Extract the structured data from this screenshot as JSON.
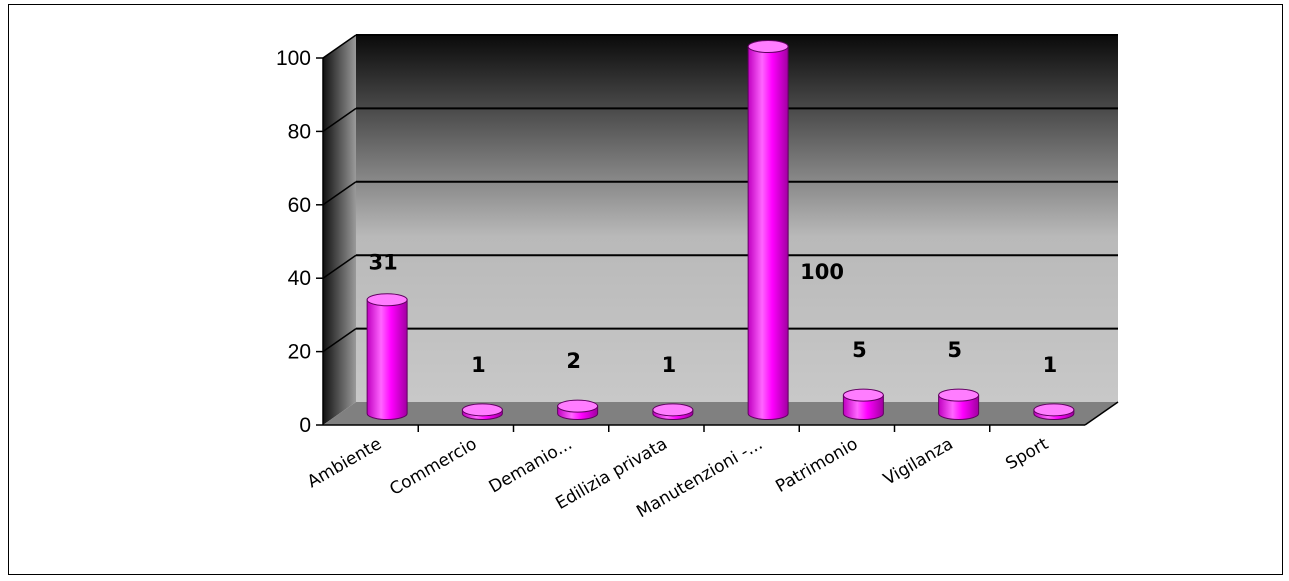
{
  "chart_data": {
    "type": "bar",
    "categories": [
      "Ambiente",
      "Commercio",
      "Demanio...",
      "Edilizia privata",
      "Manutenzioni -...",
      "Patrimonio",
      "Vigilanza",
      "Sport"
    ],
    "values": [
      31,
      1,
      2,
      1,
      100,
      5,
      5,
      1
    ],
    "data_labels": [
      "31",
      "1",
      "2",
      "1",
      "100",
      "5",
      "5",
      "1"
    ],
    "ylim": [
      0,
      100
    ],
    "yticks": [
      "0",
      "20",
      "40",
      "60",
      "80",
      "100"
    ],
    "grid": true,
    "legend": "none",
    "colors": {
      "bar": "#ff00ff",
      "bar_dark": "#b000b0",
      "bar_light": "#ff7dff",
      "wall_top": "#000000",
      "wall_bottom": "#c8c8c8",
      "floor": "#808080"
    }
  }
}
